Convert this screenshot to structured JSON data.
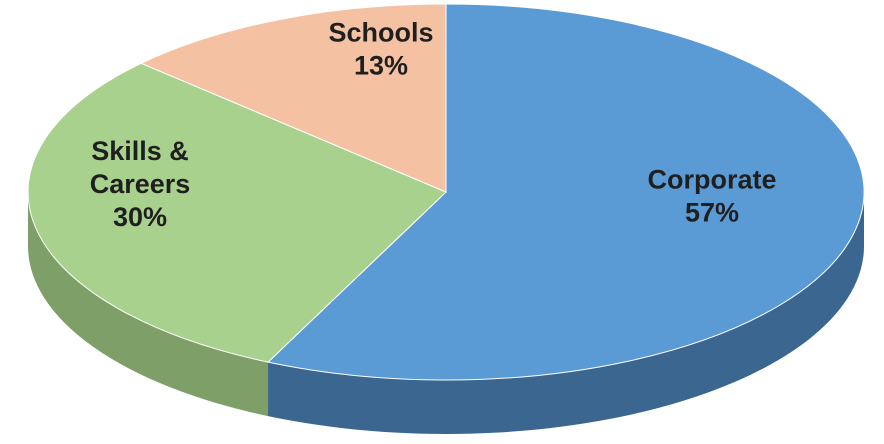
{
  "chart_data": {
    "type": "pie",
    "title": "",
    "slices": [
      {
        "label_lines": [
          "Corporate"
        ],
        "value": 57,
        "value_label": "57%",
        "color": "#5b9bd5",
        "side_color": "#3a6690"
      },
      {
        "label_lines": [
          "Skills &",
          "Careers"
        ],
        "value": 30,
        "value_label": "30%",
        "color": "#a9d18e",
        "side_color": "#7e9f68"
      },
      {
        "label_lines": [
          "Schools"
        ],
        "value": 13,
        "value_label": "13%",
        "color": "#f4c1a2",
        "side_color": "#c99a80"
      }
    ],
    "start_angle_deg": -90,
    "direction": "clockwise",
    "style": "3d",
    "legend": "none"
  }
}
